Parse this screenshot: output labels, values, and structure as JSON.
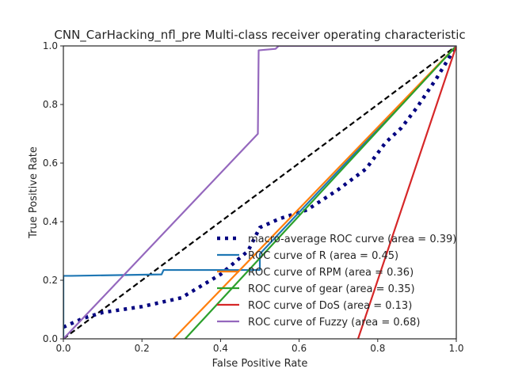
{
  "chart_data": {
    "type": "line",
    "title": "CNN_CarHacking_nfl_pre Multi-class receiver operating characteristic",
    "xlabel": "False Positive Rate",
    "ylabel": "True Positive Rate",
    "xlim": [
      0.0,
      1.0
    ],
    "ylim": [
      0.0,
      1.0
    ],
    "x_ticks": [
      "0.0",
      "0.2",
      "0.4",
      "0.6",
      "0.8",
      "1.0"
    ],
    "y_ticks": [
      "0.0",
      "0.2",
      "0.4",
      "0.6",
      "0.8",
      "1.0"
    ],
    "grid": false,
    "legend_position": "lower-right",
    "reference_line": {
      "x": [
        0,
        1
      ],
      "y": [
        0,
        1
      ],
      "color": "#000000",
      "style": "dashed"
    },
    "series": [
      {
        "name": "macro-average ROC curve (area = 0.39)",
        "color": "#000080",
        "style": "dotted",
        "x": [
          0.0,
          0.05,
          0.1,
          0.2,
          0.3,
          0.4,
          0.47,
          0.5,
          0.55,
          0.62,
          0.7,
          0.77,
          0.82,
          0.86,
          0.9,
          0.95,
          1.0
        ],
        "y": [
          0.04,
          0.07,
          0.09,
          0.11,
          0.14,
          0.22,
          0.3,
          0.38,
          0.41,
          0.44,
          0.51,
          0.58,
          0.67,
          0.72,
          0.79,
          0.89,
          1.0
        ]
      },
      {
        "name": "ROC curve of R (area = 0.45)",
        "color": "#1f77b4",
        "style": "solid",
        "x": [
          0.0,
          0.0,
          0.02,
          0.25,
          0.255,
          0.5,
          0.5,
          1.0
        ],
        "y": [
          0.0,
          0.215,
          0.215,
          0.22,
          0.235,
          0.235,
          0.29,
          1.0
        ]
      },
      {
        "name": "ROC curve of RPM (area = 0.36)",
        "color": "#ff7f0e",
        "style": "solid",
        "x": [
          0.28,
          1.0
        ],
        "y": [
          0.0,
          1.0
        ]
      },
      {
        "name": "ROC curve of gear (area = 0.35)",
        "color": "#2ca02c",
        "style": "solid",
        "x": [
          0.31,
          1.0
        ],
        "y": [
          0.0,
          1.0
        ]
      },
      {
        "name": "ROC curve of DoS (area = 0.13)",
        "color": "#d62728",
        "style": "solid",
        "x": [
          0.75,
          1.0
        ],
        "y": [
          0.0,
          1.0
        ]
      },
      {
        "name": "ROC curve of Fuzzy (area = 0.68)",
        "color": "#9467bd",
        "style": "solid",
        "x": [
          0.0,
          0.495,
          0.497,
          0.54,
          0.548,
          1.0
        ],
        "y": [
          0.0,
          0.7,
          0.985,
          0.99,
          1.0,
          1.0
        ]
      }
    ]
  }
}
